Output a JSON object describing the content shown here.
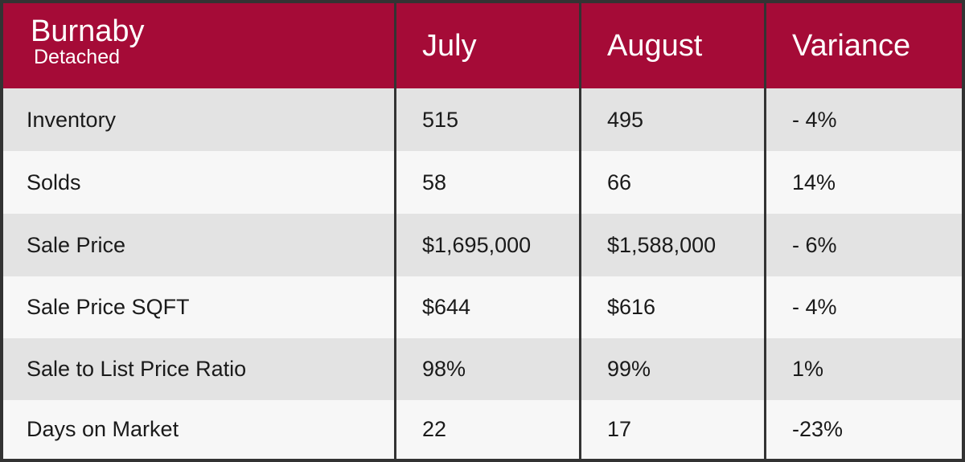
{
  "header": {
    "title": "Burnaby",
    "subtitle": "Detached",
    "columns": [
      "July",
      "August",
      "Variance"
    ]
  },
  "table": {
    "rows": [
      [
        "Inventory",
        "515",
        "495",
        "- 4%"
      ],
      [
        "Solds",
        "58",
        "66",
        "14%"
      ],
      [
        "Sale Price",
        "$1,695,000",
        "$1,588,000",
        "- 6%"
      ],
      [
        "Sale Price SQFT",
        "$644",
        "$616",
        "- 4%"
      ],
      [
        "Sale to List Price Ratio",
        "98%",
        "99%",
        "1%"
      ],
      [
        "Days on Market",
        "22",
        "17",
        "-23%"
      ]
    ]
  }
}
